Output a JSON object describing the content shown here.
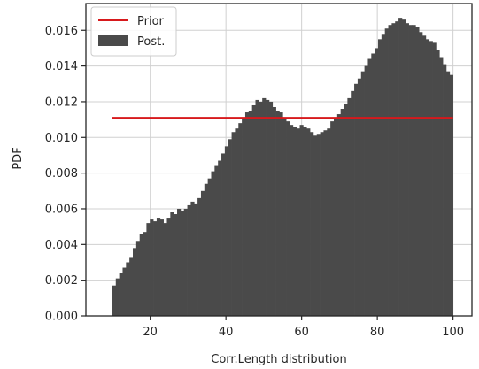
{
  "chart_data": {
    "type": "bar",
    "xlabel": "Corr.Length distribution",
    "ylabel": "PDF",
    "xlim": [
      3,
      105
    ],
    "ylim": [
      0,
      0.0175
    ],
    "x_ticks": [
      20,
      40,
      60,
      80,
      100
    ],
    "y_ticks": [
      0.0,
      0.002,
      0.004,
      0.006,
      0.008,
      0.01,
      0.012,
      0.014,
      0.016
    ],
    "grid": true,
    "legend_position": "top-left",
    "colors": {
      "prior": "#d7191c",
      "posterior": "#4a4a4a",
      "grid": "#d0d0d0",
      "axis": "#262626"
    },
    "series": [
      {
        "name": "Prior",
        "type": "line",
        "x": [
          10,
          100
        ],
        "y": [
          0.0111,
          0.0111
        ]
      },
      {
        "name": "Post.",
        "type": "histogram",
        "bin_start": 10,
        "bin_width": 0.9,
        "values": [
          0.0017,
          0.0021,
          0.0024,
          0.0027,
          0.003,
          0.0033,
          0.0038,
          0.0042,
          0.0046,
          0.0047,
          0.0052,
          0.0054,
          0.0053,
          0.0055,
          0.0054,
          0.0052,
          0.0055,
          0.0058,
          0.0057,
          0.006,
          0.0059,
          0.006,
          0.0062,
          0.0064,
          0.0063,
          0.0066,
          0.007,
          0.0074,
          0.0077,
          0.0081,
          0.0084,
          0.0087,
          0.0091,
          0.0095,
          0.0099,
          0.0103,
          0.0105,
          0.0108,
          0.0111,
          0.0114,
          0.0115,
          0.0118,
          0.0121,
          0.012,
          0.0122,
          0.0121,
          0.012,
          0.0117,
          0.0115,
          0.0114,
          0.0111,
          0.0109,
          0.0107,
          0.0106,
          0.0105,
          0.0107,
          0.0106,
          0.0105,
          0.0103,
          0.0101,
          0.0102,
          0.0103,
          0.0104,
          0.0105,
          0.0109,
          0.0111,
          0.0113,
          0.0116,
          0.0119,
          0.0122,
          0.0126,
          0.013,
          0.0133,
          0.0137,
          0.014,
          0.0144,
          0.0147,
          0.015,
          0.0155,
          0.0158,
          0.0161,
          0.0163,
          0.0164,
          0.0165,
          0.0167,
          0.0166,
          0.0164,
          0.0163,
          0.0163,
          0.0162,
          0.0159,
          0.0157,
          0.0155,
          0.0154,
          0.0153,
          0.0149,
          0.0145,
          0.0141,
          0.0137,
          0.0135
        ]
      }
    ]
  }
}
